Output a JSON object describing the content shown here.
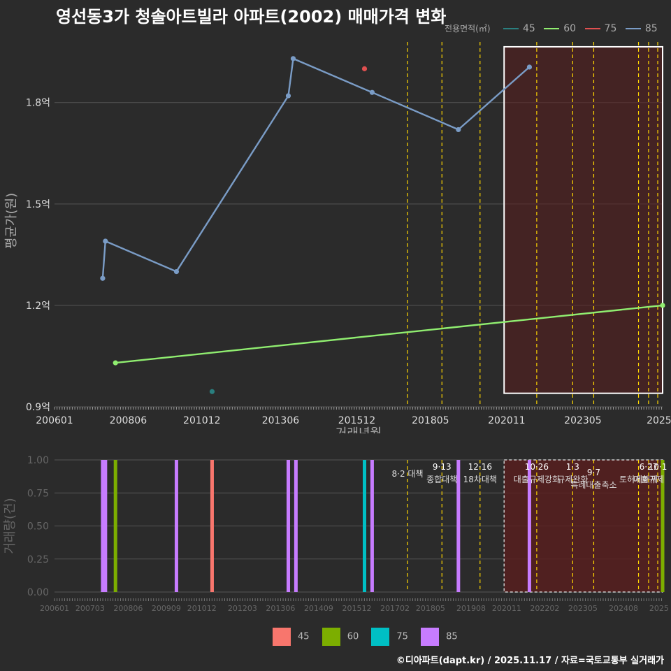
{
  "title": "영선동3가 청솔아트빌라 아파트(2002) 매매가격 변화",
  "footer": "©디아파트(dapt.kr) / 2025.11.17 / 자료=국토교통부 실거래가",
  "colors": {
    "background": "#2b2b2b",
    "highlight_fill": "#5a1e1e",
    "policy_line": "#ffd700",
    "s45_line": "#2a7f7f",
    "s60_line": "#90ee70",
    "s75_line": "#e05050",
    "s85_line": "#7a9cc6",
    "s45_bar": "#f8766d",
    "s60_bar": "#7cae00",
    "s75_bar": "#00bfc4",
    "s85_bar": "#c77cff"
  },
  "legend_top": {
    "title": "전용면적(㎡)",
    "items": [
      {
        "label": "45",
        "color": "#2a7f7f"
      },
      {
        "label": "60",
        "color": "#90ee70"
      },
      {
        "label": "75",
        "color": "#e05050"
      },
      {
        "label": "85",
        "color": "#7a9cc6"
      }
    ]
  },
  "legend_bottom": {
    "items": [
      {
        "label": "45",
        "color": "#f8766d"
      },
      {
        "label": "60",
        "color": "#7cae00"
      },
      {
        "label": "75",
        "color": "#00bfc4"
      },
      {
        "label": "85",
        "color": "#c77cff"
      }
    ]
  },
  "chart_data": [
    {
      "type": "line",
      "title": "영선동3가 청솔아트빌라 아파트(2002) 매매가격 변화",
      "xlabel": "거래년월",
      "ylabel": "평균가(원)",
      "ylim": [
        0.9,
        2.0
      ],
      "xlim": [
        2006.0,
        2025.95
      ],
      "yticks": [
        {
          "v": 0.9,
          "label": "0.9억"
        },
        {
          "v": 1.2,
          "label": "1.2억"
        },
        {
          "v": 1.5,
          "label": "1.5억"
        },
        {
          "v": 1.8,
          "label": "1.8억"
        }
      ],
      "xticks": [
        {
          "v": 2006.0,
          "label": "200601"
        },
        {
          "v": 2008.4167,
          "label": "200806"
        },
        {
          "v": 2010.8333,
          "label": "201012"
        },
        {
          "v": 2013.4167,
          "label": "201306"
        },
        {
          "v": 2015.9167,
          "label": "201512"
        },
        {
          "v": 2018.3333,
          "label": "201805"
        },
        {
          "v": 2020.8333,
          "label": "202011"
        },
        {
          "v": 2023.3333,
          "label": "202305"
        },
        {
          "v": 2025.8333,
          "label": "2025"
        }
      ],
      "series": [
        {
          "name": "45",
          "points": [
            [
              2011.17,
              0.945
            ]
          ]
        },
        {
          "name": "60",
          "points": [
            [
              2008.0,
              1.03
            ],
            [
              2025.95,
              1.2
            ]
          ]
        },
        {
          "name": "75",
          "points": [
            [
              2016.17,
              1.9
            ]
          ]
        },
        {
          "name": "85",
          "points": [
            [
              2007.58,
              1.28
            ],
            [
              2007.67,
              1.39
            ],
            [
              2010.0,
              1.3
            ],
            [
              2013.67,
              1.82
            ],
            [
              2013.83,
              1.93
            ],
            [
              2016.42,
              1.83
            ],
            [
              2019.25,
              1.72
            ],
            [
              2021.58,
              1.905
            ]
          ]
        }
      ],
      "highlight_range": {
        "x": [
          2020.75,
          2025.95
        ],
        "y": [
          0.94,
          1.965
        ]
      }
    },
    {
      "type": "bar",
      "xlabel": "",
      "ylabel": "거래량(건)",
      "ylim": [
        0,
        1.0
      ],
      "xlim": [
        2006.0,
        2025.95
      ],
      "yticks": [
        {
          "v": 0.0,
          "label": "0.00"
        },
        {
          "v": 0.25,
          "label": "0.25"
        },
        {
          "v": 0.5,
          "label": "0.50"
        },
        {
          "v": 0.75,
          "label": "0.75"
        },
        {
          "v": 1.0,
          "label": "1.00"
        }
      ],
      "xticks": [
        {
          "v": 2006.0,
          "label": "200601"
        },
        {
          "v": 2007.1667,
          "label": "200703"
        },
        {
          "v": 2008.4167,
          "label": "200806"
        },
        {
          "v": 2009.6667,
          "label": "200909"
        },
        {
          "v": 2010.8333,
          "label": "201012"
        },
        {
          "v": 2012.1667,
          "label": "201203"
        },
        {
          "v": 2013.4167,
          "label": "201306"
        },
        {
          "v": 2014.6667,
          "label": "201409"
        },
        {
          "v": 2015.9167,
          "label": "201512"
        },
        {
          "v": 2017.1667,
          "label": "201702"
        },
        {
          "v": 2018.3333,
          "label": "201805"
        },
        {
          "v": 2019.6667,
          "label": "201908"
        },
        {
          "v": 2020.8333,
          "label": "202011"
        },
        {
          "v": 2022.0833,
          "label": "202202"
        },
        {
          "v": 2023.3333,
          "label": "202305"
        },
        {
          "v": 2024.6667,
          "label": "202408"
        },
        {
          "v": 2025.8333,
          "label": "2025"
        }
      ],
      "bars": [
        {
          "x": 2007.58,
          "series": "85",
          "value": 1
        },
        {
          "x": 2007.67,
          "series": "85",
          "value": 1
        },
        {
          "x": 2008.0,
          "series": "60",
          "value": 1
        },
        {
          "x": 2010.0,
          "series": "85",
          "value": 1
        },
        {
          "x": 2011.17,
          "series": "45",
          "value": 1
        },
        {
          "x": 2013.67,
          "series": "85",
          "value": 1
        },
        {
          "x": 2013.92,
          "series": "85",
          "value": 1
        },
        {
          "x": 2016.17,
          "series": "75",
          "value": 1
        },
        {
          "x": 2016.42,
          "series": "85",
          "value": 1
        },
        {
          "x": 2019.25,
          "series": "85",
          "value": 1
        },
        {
          "x": 2021.58,
          "series": "85",
          "value": 1
        },
        {
          "x": 2025.95,
          "series": "60",
          "value": 1
        }
      ],
      "highlight_range": {
        "x": [
          2020.75,
          2025.95
        ],
        "y": [
          0.0,
          1.0
        ]
      }
    }
  ],
  "policies": [
    {
      "x": 2017.58,
      "date": "",
      "name": "8·2 대책",
      "row": 0
    },
    {
      "x": 2018.71,
      "date": "9·13",
      "name": "종합대책",
      "row": 0
    },
    {
      "x": 2019.96,
      "date": "12·16",
      "name": "18차대책",
      "row": 0
    },
    {
      "x": 2021.82,
      "date": "10·26",
      "name": "대출규제강화",
      "row": 0
    },
    {
      "x": 2023.0,
      "date": "1·3",
      "name": "규제완화",
      "row": 0
    },
    {
      "x": 2023.69,
      "date": "9·7",
      "name": "특례대출축소",
      "row": 1
    },
    {
      "x": 2025.16,
      "date": "",
      "name": "토허제해제",
      "row": 1
    },
    {
      "x": 2025.49,
      "date": "6·27",
      "name": "대출규제",
      "row": 0
    },
    {
      "x": 2025.79,
      "date": "10·1",
      "name": "",
      "row": 0
    }
  ]
}
